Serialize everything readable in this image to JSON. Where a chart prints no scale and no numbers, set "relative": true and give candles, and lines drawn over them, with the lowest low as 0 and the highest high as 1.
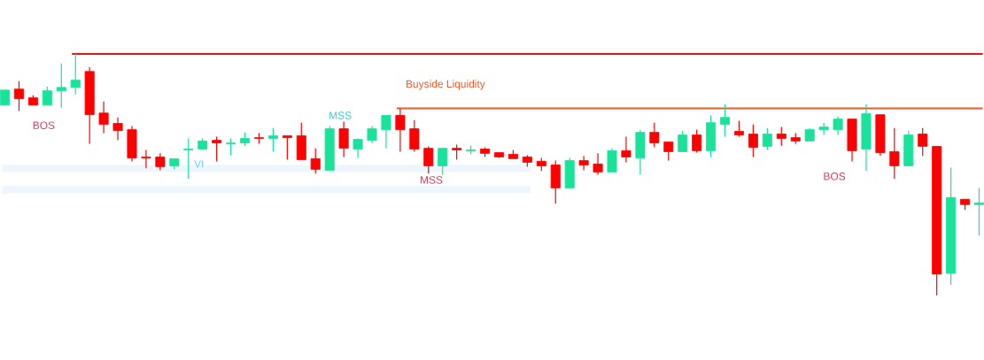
{
  "chart_data": {
    "type": "candlestick",
    "relative": true,
    "categories": [
      null,
      null,
      null,
      null,
      null,
      null,
      null,
      null,
      null,
      null,
      null,
      null,
      null,
      null,
      null,
      null,
      null,
      null,
      null,
      null,
      null,
      null,
      null,
      null,
      null,
      null,
      null,
      null,
      null,
      null,
      null,
      null,
      null,
      null,
      null,
      null,
      null,
      null,
      null,
      null,
      null,
      null,
      null,
      null,
      null,
      null,
      null,
      null,
      null,
      null,
      null,
      null,
      null,
      null,
      null,
      null,
      null,
      null,
      null,
      null,
      null,
      null,
      null,
      null,
      null,
      null,
      null,
      null,
      null,
      null
    ],
    "ohlc": [
      [
        0.788,
        0.85,
        0.788,
        0.85
      ],
      [
        0.854,
        0.887,
        0.763,
        0.814
      ],
      [
        0.818,
        0.828,
        0.788,
        0.788
      ],
      [
        0.788,
        0.865,
        0.788,
        0.847
      ],
      [
        0.847,
        0.96,
        0.777,
        0.861
      ],
      [
        0.861,
        1,
        0.832,
        0.891
      ],
      [
        0.927,
        0.945,
        0.628,
        0.748
      ],
      [
        0.755,
        0.803,
        0.672,
        0.708
      ],
      [
        0.712,
        0.737,
        0.642,
        0.682
      ],
      [
        0.686,
        0.701,
        0.555,
        0.569
      ],
      [
        0.573,
        0.602,
        0.526,
        0.569
      ],
      [
        0.573,
        0.588,
        0.518,
        0.533
      ],
      [
        0.536,
        0.566,
        0.522,
        0.566
      ],
      [
        0.602,
        0.65,
        0.482,
        0.606
      ],
      [
        0.606,
        0.65,
        0.602,
        0.639
      ],
      [
        0.642,
        0.657,
        0.555,
        0.631
      ],
      [
        0.628,
        0.65,
        0.58,
        0.631
      ],
      [
        0.631,
        0.675,
        0.62,
        0.65
      ],
      [
        0.653,
        0.672,
        0.628,
        0.65
      ],
      [
        0.65,
        0.693,
        0.595,
        0.661
      ],
      [
        0.661,
        0.661,
        0.562,
        0.653
      ],
      [
        0.661,
        0.715,
        0.562,
        0.562
      ],
      [
        0.566,
        0.609,
        0.504,
        0.522
      ],
      [
        0.518,
        0.701,
        0.518,
        0.69
      ],
      [
        0.69,
        0.719,
        0.573,
        0.609
      ],
      [
        0.606,
        0.65,
        0.569,
        0.646
      ],
      [
        0.642,
        0.701,
        0.631,
        0.69
      ],
      [
        0.686,
        0.745,
        0.609,
        0.745
      ],
      [
        0.745,
        0.774,
        0.595,
        0.686
      ],
      [
        0.69,
        0.726,
        0.595,
        0.606
      ],
      [
        0.609,
        0.617,
        0.504,
        0.536
      ],
      [
        0.536,
        0.609,
        0.5,
        0.609
      ],
      [
        0.609,
        0.624,
        0.562,
        0.602
      ],
      [
        0.599,
        0.62,
        0.584,
        0.602
      ],
      [
        0.606,
        0.613,
        0.573,
        0.588
      ],
      [
        0.591,
        0.591,
        0.569,
        0.573
      ],
      [
        0.584,
        0.602,
        0.566,
        0.566
      ],
      [
        0.573,
        0.58,
        0.533,
        0.551
      ],
      [
        0.555,
        0.569,
        0.515,
        0.536
      ],
      [
        0.54,
        0.558,
        0.38,
        0.445
      ],
      [
        0.445,
        0.569,
        0.445,
        0.558
      ],
      [
        0.558,
        0.577,
        0.518,
        0.54
      ],
      [
        0.544,
        0.588,
        0.5,
        0.511
      ],
      [
        0.511,
        0.609,
        0.511,
        0.599
      ],
      [
        0.599,
        0.657,
        0.551,
        0.573
      ],
      [
        0.569,
        0.686,
        0.5,
        0.675
      ],
      [
        0.675,
        0.715,
        0.613,
        0.631
      ],
      [
        0.635,
        0.635,
        0.558,
        0.595
      ],
      [
        0.595,
        0.682,
        0.595,
        0.664
      ],
      [
        0.664,
        0.686,
        0.591,
        0.599
      ],
      [
        0.599,
        0.745,
        0.573,
        0.715
      ],
      [
        0.708,
        0.792,
        0.657,
        0.737
      ],
      [
        0.679,
        0.723,
        0.657,
        0.664
      ],
      [
        0.668,
        0.708,
        0.573,
        0.613
      ],
      [
        0.617,
        0.693,
        0.602,
        0.668
      ],
      [
        0.668,
        0.697,
        0.62,
        0.65
      ],
      [
        0.653,
        0.672,
        0.628,
        0.639
      ],
      [
        0.639,
        0.693,
        0.639,
        0.686
      ],
      [
        0.686,
        0.715,
        0.664,
        0.697
      ],
      [
        0.686,
        0.741,
        0.664,
        0.73
      ],
      [
        0.73,
        0.73,
        0.555,
        0.599
      ],
      [
        0.606,
        0.792,
        0.515,
        0.752
      ],
      [
        0.748,
        0.748,
        0.577,
        0.591
      ],
      [
        0.595,
        0.693,
        0.482,
        0.536
      ],
      [
        0.536,
        0.682,
        0.536,
        0.664
      ],
      [
        0.668,
        0.693,
        0.577,
        0.617
      ],
      [
        0.617,
        0.617,
        0,
        0.088
      ],
      [
        0.091,
        0.529,
        0.044,
        0.405
      ],
      [
        0.398,
        0.398,
        0.354,
        0.376
      ],
      [
        0.376,
        0.445,
        0.248,
        0.383
      ]
    ],
    "colors": [
      "#19e39a",
      "#ff0000",
      "#ff0000",
      "#19e39a",
      "#19e39a",
      "#19e39a",
      "#ff0000",
      "#ff0000",
      "#ff0000",
      "#ff0000",
      "#ff0000",
      "#ff0000",
      "#19e39a",
      "#19e39a",
      "#19e39a",
      "#ff0000",
      "#19e39a",
      "#19e39a",
      "#ff0000",
      "#19e39a",
      "#ff0000",
      "#ff0000",
      "#ff0000",
      "#19e39a",
      "#ff0000",
      "#19e39a",
      "#19e39a",
      "#19e39a",
      "#ff0000",
      "#ff0000",
      "#ff0000",
      "#19e39a",
      "#ff0000",
      "#19e39a",
      "#ff0000",
      "#ff0000",
      "#ff0000",
      "#ff0000",
      "#ff0000",
      "#ff0000",
      "#19e39a",
      "#ff0000",
      "#ff0000",
      "#19e39a",
      "#ff0000",
      "#19e39a",
      "#ff0000",
      "#ff0000",
      "#19e39a",
      "#ff0000",
      "#19e39a",
      "#19e39a",
      "#ff0000",
      "#ff0000",
      "#19e39a",
      "#ff0000",
      "#ff0000",
      "#19e39a",
      "#19e39a",
      "#19e39a",
      "#ff0000",
      "#19e39a",
      "#ff0000",
      "#ff0000",
      "#19e39a",
      "#ff0000",
      "#ff0000",
      "#19e39a",
      "#ff0000",
      "#19e39a"
    ],
    "ref_lines": [
      {
        "axis": "y",
        "value": 1,
        "label": null,
        "color": "#ee1111"
      },
      {
        "axis": "y",
        "value": 0.774,
        "label": "Buyside Liquidity",
        "color": "#f05a28"
      }
    ],
    "bands": [
      {
        "axis": "y",
        "from": 0.511,
        "to": 0.54,
        "label": null,
        "color": "#edf5fd"
      },
      {
        "axis": "y",
        "from": 0.423,
        "to": 0.453,
        "label": null,
        "color": "#edf5fd"
      }
    ],
    "annotations": [
      "BOS",
      "MSS",
      "VI",
      "MSS",
      "BOS"
    ]
  }
}
